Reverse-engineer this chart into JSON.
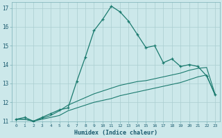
{
  "xlabel": "Humidex (Indice chaleur)",
  "bg_color": "#cce8ea",
  "grid_color": "#aacdd0",
  "line_color": "#1a7a6e",
  "text_color": "#1a5a6e",
  "xlim": [
    -0.5,
    23.5
  ],
  "ylim": [
    11,
    17.3
  ],
  "yticks": [
    11,
    12,
    13,
    14,
    15,
    16,
    17
  ],
  "xticks": [
    0,
    1,
    2,
    3,
    4,
    5,
    6,
    7,
    8,
    9,
    10,
    11,
    12,
    13,
    14,
    15,
    16,
    17,
    18,
    19,
    20,
    21,
    22,
    23
  ],
  "series1_x": [
    0,
    1,
    2,
    3,
    4,
    5,
    6,
    7,
    8,
    9,
    10,
    11,
    12,
    13,
    14,
    15,
    16,
    17,
    18,
    19,
    20,
    21,
    22,
    23
  ],
  "series1_y": [
    11.1,
    11.2,
    11.0,
    11.2,
    11.4,
    11.6,
    11.7,
    13.1,
    14.4,
    15.8,
    16.4,
    17.1,
    16.8,
    16.3,
    15.6,
    14.9,
    15.0,
    14.1,
    14.3,
    13.9,
    14.0,
    13.9,
    13.4,
    12.4
  ],
  "series2_x": [
    0,
    1,
    2,
    3,
    4,
    5,
    6,
    7,
    8,
    9,
    10,
    11,
    12,
    13,
    14,
    15,
    16,
    17,
    18,
    19,
    20,
    21,
    22,
    23
  ],
  "series2_y": [
    11.1,
    11.1,
    11.0,
    11.1,
    11.2,
    11.3,
    11.55,
    11.7,
    11.85,
    12.0,
    12.1,
    12.2,
    12.35,
    12.45,
    12.55,
    12.65,
    12.75,
    12.85,
    12.95,
    13.05,
    13.2,
    13.35,
    13.45,
    12.35
  ],
  "series3_x": [
    0,
    1,
    2,
    3,
    4,
    5,
    6,
    7,
    8,
    9,
    10,
    11,
    12,
    13,
    14,
    15,
    16,
    17,
    18,
    19,
    20,
    21,
    22,
    23
  ],
  "series3_y": [
    11.1,
    11.1,
    11.0,
    11.15,
    11.3,
    11.55,
    11.85,
    12.05,
    12.25,
    12.45,
    12.6,
    12.75,
    12.9,
    13.0,
    13.1,
    13.15,
    13.25,
    13.35,
    13.45,
    13.55,
    13.7,
    13.8,
    13.85,
    12.4
  ]
}
